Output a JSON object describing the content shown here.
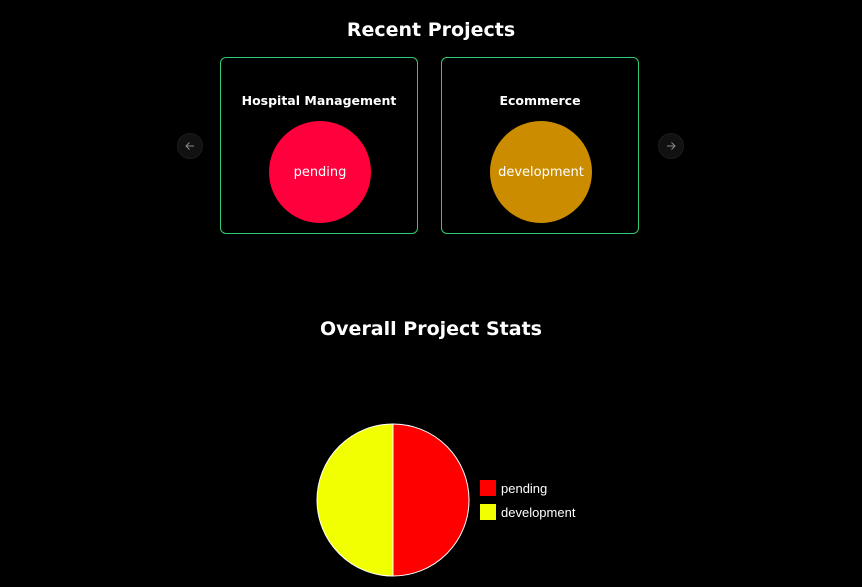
{
  "recent_projects": {
    "title": "Recent Projects",
    "prev_icon": "arrow-left-icon",
    "next_icon": "arrow-right-icon",
    "cards": [
      {
        "name": "Hospital Management",
        "status": "pending",
        "status_color": "#ff003c"
      },
      {
        "name": "Ecommerce",
        "status": "development",
        "status_color": "#cc8c00"
      }
    ]
  },
  "stats": {
    "title": "Overall Project Stats"
  },
  "chart_data": {
    "type": "pie",
    "categories": [
      "pending",
      "development"
    ],
    "values": [
      1,
      1
    ],
    "colors": [
      "#ff0000",
      "#f2ff00"
    ],
    "legend_position": "right"
  }
}
